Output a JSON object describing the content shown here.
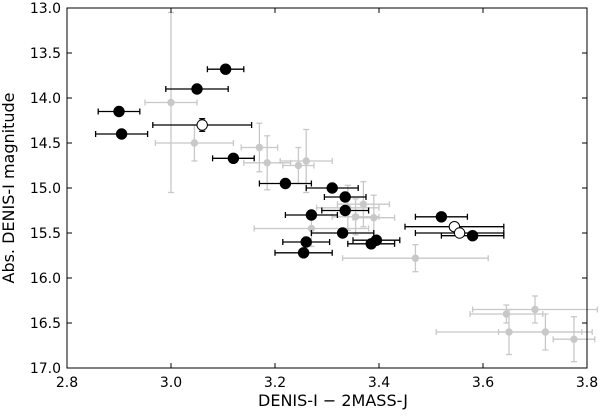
{
  "chart_data": {
    "type": "scatter",
    "title": "",
    "xlabel": "DENIS-I − 2MASS-J",
    "ylabel": "Abs. DENIS-I magnitude",
    "xlim": [
      2.8,
      3.8
    ],
    "ylim": [
      17.0,
      13.0
    ],
    "y_inverted": true,
    "grid": false,
    "xticks": [
      "2.8",
      "3.0",
      "3.2",
      "3.4",
      "3.6",
      "3.8"
    ],
    "yticks": [
      "13.0",
      "13.5",
      "14.0",
      "14.5",
      "15.0",
      "15.5",
      "16.0",
      "16.5",
      "17.0"
    ],
    "colors": {
      "black_points": "#000000",
      "gray_points": "#c8c8c8",
      "open_points_edge": "#000000",
      "open_points_face": "#ffffff"
    },
    "series": [
      {
        "style": "filled-black",
        "points": [
          {
            "x": 3.105,
            "y": 13.68,
            "xerr": 0.035,
            "yerr": 0.0
          },
          {
            "x": 3.05,
            "y": 13.9,
            "xerr": 0.06,
            "yerr": 0.0
          },
          {
            "x": 2.9,
            "y": 14.15,
            "xerr": 0.04,
            "yerr": 0.0
          },
          {
            "x": 2.905,
            "y": 14.4,
            "xerr": 0.05,
            "yerr": 0.0
          },
          {
            "x": 3.12,
            "y": 14.67,
            "xerr": 0.04,
            "yerr": 0.0
          },
          {
            "x": 3.22,
            "y": 14.95,
            "xerr": 0.05,
            "yerr": 0.0
          },
          {
            "x": 3.31,
            "y": 15.0,
            "xerr": 0.05,
            "yerr": 0.0
          },
          {
            "x": 3.335,
            "y": 15.1,
            "xerr": 0.04,
            "yerr": 0.0
          },
          {
            "x": 3.335,
            "y": 15.25,
            "xerr": 0.045,
            "yerr": 0.0
          },
          {
            "x": 3.27,
            "y": 15.3,
            "xerr": 0.05,
            "yerr": 0.0
          },
          {
            "x": 3.52,
            "y": 15.32,
            "xerr": 0.05,
            "yerr": 0.0
          },
          {
            "x": 3.33,
            "y": 15.5,
            "xerr": 0.06,
            "yerr": 0.0
          },
          {
            "x": 3.58,
            "y": 15.53,
            "xerr": 0.06,
            "yerr": 0.0
          },
          {
            "x": 3.395,
            "y": 15.58,
            "xerr": 0.045,
            "yerr": 0.0
          },
          {
            "x": 3.385,
            "y": 15.62,
            "xerr": 0.045,
            "yerr": 0.0
          },
          {
            "x": 3.26,
            "y": 15.6,
            "xerr": 0.045,
            "yerr": 0.0
          },
          {
            "x": 3.255,
            "y": 15.72,
            "xerr": 0.055,
            "yerr": 0.0
          }
        ]
      },
      {
        "style": "open-circle",
        "points": [
          {
            "x": 3.06,
            "y": 14.3,
            "xerr": 0.095,
            "yerr": 0.07
          },
          {
            "x": 3.545,
            "y": 15.43,
            "xerr": 0.095,
            "yerr": 0.0
          },
          {
            "x": 3.555,
            "y": 15.5,
            "xerr": 0.085,
            "yerr": 0.0
          }
        ]
      },
      {
        "style": "filled-gray",
        "points": [
          {
            "x": 3.0,
            "y": 14.05,
            "xerr": 0.05,
            "yerr": 1.0
          },
          {
            "x": 3.045,
            "y": 14.5,
            "xerr": 0.075,
            "yerr": 0.2
          },
          {
            "x": 3.17,
            "y": 14.55,
            "xerr": 0.035,
            "yerr": 0.27
          },
          {
            "x": 3.185,
            "y": 14.72,
            "xerr": 0.045,
            "yerr": 0.3
          },
          {
            "x": 3.245,
            "y": 14.75,
            "xerr": 0.03,
            "yerr": 0.2
          },
          {
            "x": 3.26,
            "y": 14.7,
            "xerr": 0.05,
            "yerr": 0.35
          },
          {
            "x": 3.34,
            "y": 15.22,
            "xerr": 0.06,
            "yerr": 0.25
          },
          {
            "x": 3.355,
            "y": 15.32,
            "xerr": 0.045,
            "yerr": 0.2
          },
          {
            "x": 3.37,
            "y": 15.18,
            "xerr": 0.05,
            "yerr": 0.25
          },
          {
            "x": 3.39,
            "y": 15.33,
            "xerr": 0.04,
            "yerr": 0.25
          },
          {
            "x": 3.27,
            "y": 15.45,
            "xerr": 0.11,
            "yerr": 0.2
          },
          {
            "x": 3.47,
            "y": 15.78,
            "xerr": 0.14,
            "yerr": 0.15
          },
          {
            "x": 3.645,
            "y": 16.4,
            "xerr": 0.07,
            "yerr": 0.1
          },
          {
            "x": 3.7,
            "y": 16.35,
            "xerr": 0.12,
            "yerr": 0.15
          },
          {
            "x": 3.65,
            "y": 16.6,
            "xerr": 0.14,
            "yerr": 0.25
          },
          {
            "x": 3.72,
            "y": 16.6,
            "xerr": 0.09,
            "yerr": 0.2
          },
          {
            "x": 3.775,
            "y": 16.68,
            "xerr": 0.04,
            "yerr": 0.25
          }
        ]
      }
    ]
  }
}
